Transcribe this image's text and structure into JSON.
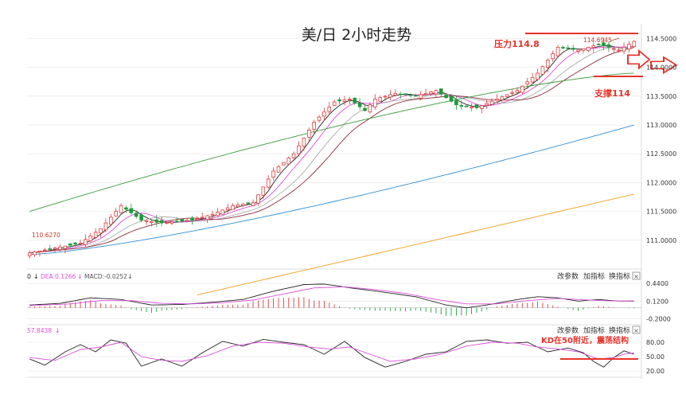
{
  "title": "美/日 2小时走势",
  "annotations": {
    "resistance": "压力114.8",
    "support": "支撑114",
    "kd_note": "KD在50附近，震荡结构",
    "high_marker": "114.6945",
    "low_marker": "110.6270"
  },
  "colors": {
    "up": "#e23a3a",
    "down": "#1f9a3a",
    "ma5": "#222222",
    "ma10": "#d94fd9",
    "ma20": "#aaaaaa",
    "ma30": "#8b2b3b",
    "ma60": "#3a9a3a",
    "ma120": "#2f8fd8",
    "ma250": "#f0a020",
    "annotation": "#e8332a",
    "grid": "#e6e6e6"
  },
  "macd_header": {
    "items": [
      "0",
      "DEA:0.1266",
      "MACD:-0.0252"
    ]
  },
  "kd_header": {
    "value": "57.8438"
  },
  "panel_menu": {
    "change_params": "改参数",
    "add_indicator": "加指标",
    "swap_indicator": "换指标",
    "close": "×"
  },
  "chart_data": [
    {
      "type": "candlestick",
      "title": "美/日 2小时走势",
      "ylim": [
        110.5,
        114.7
      ],
      "y_ticks": [
        "114.5000",
        "114.0000",
        "113.5000",
        "113.0000",
        "112.5000",
        "112.0000",
        "111.5000",
        "111.0000"
      ],
      "candle_count": 120,
      "close_waypoints": [
        [
          0,
          110.78
        ],
        [
          10,
          110.95
        ],
        [
          14,
          111.2
        ],
        [
          18,
          111.6
        ],
        [
          22,
          111.35
        ],
        [
          26,
          111.3
        ],
        [
          32,
          111.35
        ],
        [
          36,
          111.45
        ],
        [
          40,
          111.6
        ],
        [
          44,
          111.65
        ],
        [
          48,
          112.2
        ],
        [
          52,
          112.5
        ],
        [
          56,
          113.05
        ],
        [
          60,
          113.4
        ],
        [
          63,
          113.45
        ],
        [
          66,
          113.25
        ],
        [
          68,
          113.45
        ],
        [
          72,
          113.55
        ],
        [
          76,
          113.5
        ],
        [
          80,
          113.6
        ],
        [
          84,
          113.35
        ],
        [
          88,
          113.3
        ],
        [
          92,
          113.45
        ],
        [
          96,
          113.6
        ],
        [
          100,
          113.9
        ],
        [
          104,
          114.35
        ],
        [
          108,
          114.3
        ],
        [
          112,
          114.4
        ],
        [
          116,
          114.3
        ],
        [
          119,
          114.45
        ]
      ],
      "moving_averages": [
        {
          "name": "MA5",
          "lag": 3
        },
        {
          "name": "MA10",
          "lag": 6
        },
        {
          "name": "MA20",
          "lag": 11
        },
        {
          "name": "MA30",
          "lag": 16
        },
        {
          "name": "MA60",
          "start": [
            0,
            111.5
          ],
          "end": [
            119,
            113.9
          ],
          "curve": "concave"
        },
        {
          "name": "MA120",
          "start": [
            0,
            110.75
          ],
          "end": [
            119,
            113.0
          ],
          "curve": "convex"
        },
        {
          "name": "MA250",
          "start": [
            33,
            110.05
          ],
          "end": [
            119,
            111.8
          ],
          "curve": "linear"
        }
      ]
    },
    {
      "type": "macd",
      "ylim": [
        -0.25,
        0.5
      ],
      "y_ticks": [
        "0.4400",
        "0.1200",
        "-0.2000"
      ],
      "dif_waypoints": [
        [
          0,
          0.05
        ],
        [
          6,
          0.08
        ],
        [
          12,
          0.18
        ],
        [
          18,
          0.15
        ],
        [
          24,
          0.05
        ],
        [
          30,
          0.06
        ],
        [
          36,
          0.1
        ],
        [
          42,
          0.15
        ],
        [
          48,
          0.3
        ],
        [
          54,
          0.42
        ],
        [
          58,
          0.43
        ],
        [
          64,
          0.35
        ],
        [
          70,
          0.28
        ],
        [
          76,
          0.2
        ],
        [
          82,
          0.05
        ],
        [
          86,
          0.0
        ],
        [
          90,
          0.05
        ],
        [
          96,
          0.15
        ],
        [
          100,
          0.2
        ],
        [
          104,
          0.18
        ],
        [
          108,
          0.12
        ],
        [
          112,
          0.15
        ],
        [
          116,
          0.12
        ],
        [
          119,
          0.12
        ]
      ],
      "dea_waypoints": [
        [
          0,
          0.04
        ],
        [
          8,
          0.07
        ],
        [
          14,
          0.13
        ],
        [
          20,
          0.13
        ],
        [
          26,
          0.08
        ],
        [
          32,
          0.07
        ],
        [
          38,
          0.09
        ],
        [
          44,
          0.14
        ],
        [
          50,
          0.25
        ],
        [
          56,
          0.36
        ],
        [
          62,
          0.38
        ],
        [
          68,
          0.33
        ],
        [
          74,
          0.26
        ],
        [
          80,
          0.15
        ],
        [
          86,
          0.07
        ],
        [
          92,
          0.07
        ],
        [
          98,
          0.13
        ],
        [
          104,
          0.17
        ],
        [
          110,
          0.14
        ],
        [
          116,
          0.12
        ],
        [
          119,
          0.127
        ]
      ]
    },
    {
      "type": "kd",
      "ylim": [
        10,
        100
      ],
      "y_ticks": [
        "80.00",
        "50.00",
        "20.00"
      ],
      "k_waypoints": [
        [
          0,
          45
        ],
        [
          3,
          32
        ],
        [
          7,
          60
        ],
        [
          10,
          75
        ],
        [
          13,
          60
        ],
        [
          16,
          85
        ],
        [
          19,
          78
        ],
        [
          22,
          30
        ],
        [
          26,
          45
        ],
        [
          30,
          30
        ],
        [
          34,
          58
        ],
        [
          38,
          82
        ],
        [
          42,
          72
        ],
        [
          46,
          86
        ],
        [
          50,
          80
        ],
        [
          54,
          75
        ],
        [
          58,
          55
        ],
        [
          62,
          82
        ],
        [
          66,
          48
        ],
        [
          70,
          28
        ],
        [
          74,
          40
        ],
        [
          78,
          55
        ],
        [
          82,
          60
        ],
        [
          86,
          82
        ],
        [
          90,
          85
        ],
        [
          94,
          78
        ],
        [
          98,
          80
        ],
        [
          102,
          60
        ],
        [
          106,
          68
        ],
        [
          109,
          58
        ],
        [
          111,
          40
        ],
        [
          113,
          28
        ],
        [
          115,
          48
        ],
        [
          117,
          62
        ],
        [
          119,
          55
        ]
      ],
      "d_waypoints": [
        [
          0,
          48
        ],
        [
          5,
          42
        ],
        [
          10,
          65
        ],
        [
          14,
          70
        ],
        [
          18,
          80
        ],
        [
          22,
          50
        ],
        [
          26,
          42
        ],
        [
          30,
          40
        ],
        [
          35,
          52
        ],
        [
          40,
          72
        ],
        [
          45,
          80
        ],
        [
          50,
          78
        ],
        [
          55,
          70
        ],
        [
          59,
          66
        ],
        [
          63,
          70
        ],
        [
          67,
          55
        ],
        [
          71,
          40
        ],
        [
          76,
          45
        ],
        [
          81,
          55
        ],
        [
          86,
          72
        ],
        [
          91,
          80
        ],
        [
          96,
          78
        ],
        [
          100,
          70
        ],
        [
          104,
          66
        ],
        [
          108,
          60
        ],
        [
          112,
          45
        ],
        [
          115,
          48
        ],
        [
          117,
          55
        ],
        [
          119,
          57.8438
        ]
      ],
      "reference_level": 50
    }
  ]
}
